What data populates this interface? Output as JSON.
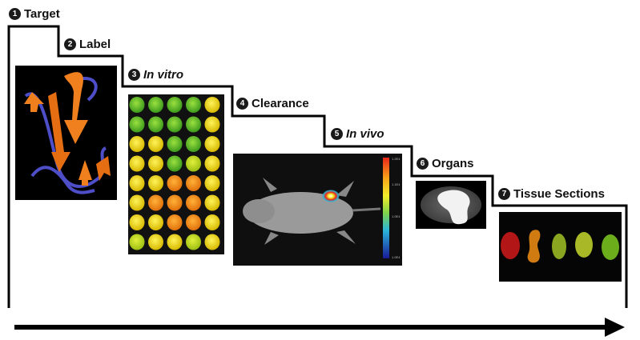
{
  "steps": [
    {
      "number": "1",
      "label": "Target"
    },
    {
      "number": "2",
      "label": "Label"
    },
    {
      "number": "3",
      "label": "In vitro"
    },
    {
      "number": "4",
      "label": "Clearance"
    },
    {
      "number": "5",
      "label": "In vivo"
    },
    {
      "number": "6",
      "label": "Organs"
    },
    {
      "number": "7",
      "label": "Tissue Sections"
    }
  ],
  "colorbar_ticks": [
    "1.2E4",
    "1.1E4",
    "1.0E4",
    "1.0E4"
  ],
  "colors": {
    "line": "#000000",
    "protein": "#f07f1e",
    "loop": "#4d4ec8"
  }
}
